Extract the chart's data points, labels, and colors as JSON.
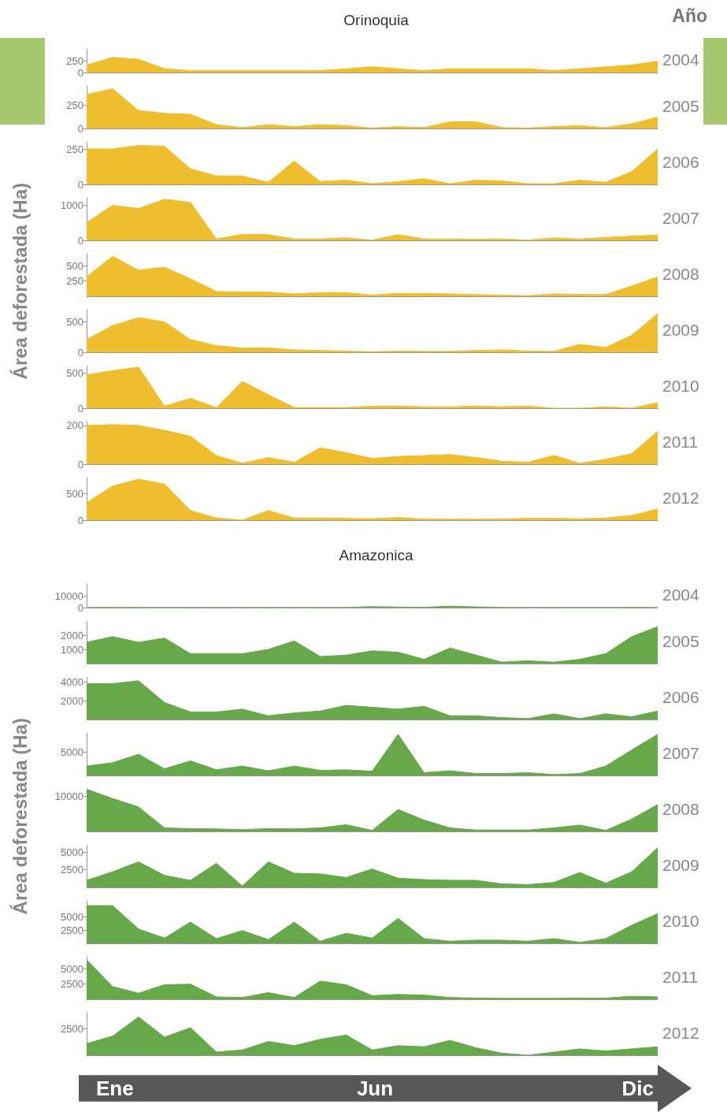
{
  "chart_data": [
    {
      "type": "area",
      "title": "Orinoquia",
      "ylabel": "Área deforestada (Ha)",
      "y2label": "2004",
      "annotations": [
        "Año"
      ],
      "categories": [
        null,
        null,
        null,
        null,
        null,
        null,
        null,
        null,
        null,
        null,
        null,
        null,
        null,
        null,
        null,
        null,
        null,
        null,
        null,
        null,
        null,
        null,
        null
      ],
      "color": "#efbe2f",
      "ylim": [
        0,
        500
      ],
      "yticks": [
        0,
        250
      ],
      "values": [
        160,
        320,
        280,
        80,
        40,
        40,
        40,
        40,
        40,
        40,
        80,
        120,
        80,
        40,
        80,
        80,
        80,
        80,
        40,
        80,
        120,
        160,
        240
      ]
    },
    {
      "type": "area",
      "y2label": "2005",
      "categories": [
        null,
        null,
        null,
        null,
        null,
        null,
        null,
        null,
        null,
        null,
        null,
        null,
        null,
        null,
        null,
        null,
        null,
        null,
        null,
        null,
        null,
        null,
        null
      ],
      "color": "#efbe2f",
      "ylim": [
        0,
        450
      ],
      "yticks": [
        0,
        250
      ],
      "values": [
        360,
        420,
        190,
        160,
        150,
        40,
        10,
        40,
        20,
        40,
        30,
        5,
        20,
        10,
        70,
        70,
        10,
        5,
        20,
        30,
        10,
        50,
        120
      ]
    },
    {
      "type": "area",
      "y2label": "2006",
      "categories": [
        null,
        null,
        null,
        null,
        null,
        null,
        null,
        null,
        null,
        null,
        null,
        null,
        null,
        null,
        null,
        null,
        null,
        null,
        null,
        null,
        null,
        null,
        null
      ],
      "color": "#efbe2f",
      "ylim": [
        0,
        300
      ],
      "yticks": [
        0,
        250
      ],
      "values": [
        250,
        250,
        275,
        270,
        110,
        60,
        60,
        15,
        165,
        20,
        30,
        5,
        20,
        40,
        5,
        30,
        25,
        5,
        5,
        30,
        15,
        90,
        250
      ]
    },
    {
      "type": "area",
      "y2label": "2007",
      "categories": [
        null,
        null,
        null,
        null,
        null,
        null,
        null,
        null,
        null,
        null,
        null,
        null,
        null,
        null,
        null,
        null,
        null,
        null,
        null,
        null,
        null,
        null,
        null
      ],
      "color": "#efbe2f",
      "ylim": [
        0,
        1200
      ],
      "yticks": [
        0,
        1000
      ],
      "values": [
        500,
        990,
        900,
        1160,
        1070,
        40,
        170,
        160,
        40,
        40,
        70,
        10,
        160,
        40,
        40,
        30,
        40,
        10,
        70,
        40,
        80,
        120,
        150
      ]
    },
    {
      "type": "area",
      "y2label": "2008",
      "categories": [
        null,
        null,
        null,
        null,
        null,
        null,
        null,
        null,
        null,
        null,
        null,
        null,
        null,
        null,
        null,
        null,
        null,
        null,
        null,
        null,
        null,
        null,
        null
      ],
      "color": "#efbe2f",
      "ylim": [
        0,
        700
      ],
      "yticks": [
        250,
        500
      ],
      "values": [
        320,
        660,
        430,
        480,
        290,
        80,
        70,
        70,
        40,
        60,
        60,
        20,
        50,
        50,
        40,
        30,
        20,
        10,
        40,
        30,
        30,
        170,
        320
      ]
    },
    {
      "type": "area",
      "y2label": "2009",
      "categories": [
        null,
        null,
        null,
        null,
        null,
        null,
        null,
        null,
        null,
        null,
        null,
        null,
        null,
        null,
        null,
        null,
        null,
        null,
        null,
        null,
        null,
        null,
        null
      ],
      "color": "#efbe2f",
      "ylim": [
        0,
        700
      ],
      "yticks": [
        0,
        500
      ],
      "values": [
        210,
        440,
        570,
        500,
        210,
        110,
        70,
        70,
        40,
        30,
        20,
        10,
        20,
        15,
        15,
        30,
        40,
        20,
        15,
        130,
        80,
        280,
        640
      ]
    },
    {
      "type": "area",
      "y2label": "2010",
      "categories": [
        null,
        null,
        null,
        null,
        null,
        null,
        null,
        null,
        null,
        null,
        null,
        null,
        null,
        null,
        null,
        null,
        null,
        null,
        null,
        null,
        null,
        null,
        null
      ],
      "color": "#efbe2f",
      "ylim": [
        0,
        600
      ],
      "yticks": [
        0,
        500
      ],
      "values": [
        470,
        530,
        580,
        30,
        140,
        10,
        380,
        190,
        10,
        10,
        10,
        30,
        30,
        20,
        20,
        30,
        20,
        30,
        0,
        0,
        20,
        0,
        80
      ]
    },
    {
      "type": "area",
      "y2label": "2011",
      "categories": [
        null,
        null,
        null,
        null,
        null,
        null,
        null,
        null,
        null,
        null,
        null,
        null,
        null,
        null,
        null,
        null,
        null,
        null,
        null,
        null,
        null,
        null,
        null
      ],
      "color": "#efbe2f",
      "ylim": [
        0,
        220
      ],
      "yticks": [
        0,
        200
      ],
      "values": [
        200,
        205,
        200,
        175,
        145,
        45,
        5,
        35,
        10,
        85,
        60,
        30,
        40,
        45,
        50,
        35,
        15,
        10,
        45,
        5,
        25,
        55,
        170
      ]
    },
    {
      "type": "area",
      "y2label": "2012",
      "categories": [
        null,
        null,
        null,
        null,
        null,
        null,
        null,
        null,
        null,
        null,
        null,
        null,
        null,
        null,
        null,
        null,
        null,
        null,
        null,
        null,
        null,
        null,
        null
      ],
      "color": "#efbe2f",
      "ylim": [
        0,
        800
      ],
      "yticks": [
        0,
        500
      ],
      "values": [
        330,
        640,
        770,
        680,
        180,
        40,
        0,
        180,
        40,
        40,
        35,
        25,
        50,
        20,
        20,
        20,
        20,
        35,
        35,
        25,
        40,
        90,
        210
      ]
    },
    {
      "type": "area",
      "title": "Amazonica",
      "ylabel": "Área deforestada (Ha)",
      "y2label": "2004",
      "categories": [
        null,
        null,
        null,
        null,
        null,
        null,
        null,
        null,
        null,
        null,
        null,
        null,
        null,
        null,
        null,
        null,
        null,
        null,
        null,
        null,
        null,
        null,
        null
      ],
      "color": "#66a84a",
      "ylim": [
        0,
        20000
      ],
      "yticks": [
        0,
        10000
      ],
      "values": [
        200,
        200,
        200,
        200,
        200,
        200,
        200,
        200,
        200,
        200,
        200,
        800,
        500,
        300,
        1200,
        600,
        200,
        200,
        200,
        200,
        200,
        200,
        200
      ]
    },
    {
      "type": "area",
      "y2label": "2005",
      "categories": [
        null,
        null,
        null,
        null,
        null,
        null,
        null,
        null,
        null,
        null,
        null,
        null,
        null,
        null,
        null,
        null,
        null,
        null,
        null,
        null,
        null,
        null,
        null
      ],
      "color": "#66a84a",
      "ylim": [
        0,
        3000
      ],
      "yticks": [
        1000,
        2000
      ],
      "values": [
        1500,
        1900,
        1500,
        1800,
        700,
        700,
        700,
        1000,
        1600,
        500,
        600,
        900,
        800,
        300,
        1100,
        600,
        100,
        200,
        100,
        300,
        700,
        1900,
        2600
      ]
    },
    {
      "type": "area",
      "y2label": "2006",
      "categories": [
        null,
        null,
        null,
        null,
        null,
        null,
        null,
        null,
        null,
        null,
        null,
        null,
        null,
        null,
        null,
        null,
        null,
        null,
        null,
        null,
        null,
        null,
        null
      ],
      "color": "#66a84a",
      "ylim": [
        0,
        4500
      ],
      "yticks": [
        2000,
        4000
      ],
      "values": [
        3800,
        3800,
        4100,
        1800,
        800,
        800,
        1100,
        400,
        700,
        900,
        1500,
        1300,
        1100,
        1400,
        400,
        400,
        200,
        100,
        600,
        100,
        600,
        300,
        900
      ]
    },
    {
      "type": "area",
      "y2label": "2007",
      "categories": [
        null,
        null,
        null,
        null,
        null,
        null,
        null,
        null,
        null,
        null,
        null,
        null,
        null,
        null,
        null,
        null,
        null,
        null,
        null,
        null,
        null,
        null,
        null
      ],
      "color": "#66a84a",
      "ylim": [
        0,
        9000
      ],
      "yticks": [
        5000
      ],
      "values": [
        2000,
        2700,
        4500,
        1400,
        3100,
        1200,
        2000,
        1000,
        2000,
        1100,
        1200,
        900,
        8700,
        600,
        1000,
        400,
        400,
        600,
        200,
        400,
        2000,
        5400,
        8700
      ]
    },
    {
      "type": "area",
      "y2label": "2008",
      "categories": [
        null,
        null,
        null,
        null,
        null,
        null,
        null,
        null,
        null,
        null,
        null,
        null,
        null,
        null,
        null,
        null,
        null,
        null,
        null,
        null,
        null,
        null,
        null
      ],
      "color": "#66a84a",
      "ylim": [
        0,
        12000
      ],
      "yticks": [
        10000
      ],
      "values": [
        11900,
        9300,
        6900,
        1000,
        800,
        700,
        500,
        800,
        700,
        1000,
        1900,
        300,
        6200,
        3200,
        1000,
        400,
        400,
        400,
        1000,
        1800,
        300,
        3500,
        7600
      ]
    },
    {
      "type": "area",
      "y2label": "2009",
      "categories": [
        null,
        null,
        null,
        null,
        null,
        null,
        null,
        null,
        null,
        null,
        null,
        null,
        null,
        null,
        null,
        null,
        null,
        null,
        null,
        null,
        null,
        null,
        null
      ],
      "color": "#66a84a",
      "ylim": [
        0,
        6000
      ],
      "yticks": [
        2500,
        5000
      ],
      "values": [
        1000,
        2200,
        3600,
        1700,
        1000,
        3400,
        200,
        3600,
        2000,
        1900,
        1400,
        2600,
        1300,
        1100,
        1000,
        1000,
        500,
        400,
        700,
        2100,
        600,
        2200,
        5600
      ]
    },
    {
      "type": "area",
      "y2label": "2010",
      "categories": [
        null,
        null,
        null,
        null,
        null,
        null,
        null,
        null,
        null,
        null,
        null,
        null,
        null,
        null,
        null,
        null,
        null,
        null,
        null,
        null,
        null,
        null,
        null
      ],
      "color": "#66a84a",
      "ylim": [
        0,
        8000
      ],
      "yticks": [
        2500,
        5000
      ],
      "values": [
        7100,
        7100,
        2700,
        1000,
        4000,
        900,
        2400,
        700,
        4000,
        400,
        1900,
        1000,
        4700,
        900,
        400,
        600,
        600,
        400,
        900,
        200,
        900,
        3400,
        5600
      ]
    },
    {
      "type": "area",
      "y2label": "2011",
      "categories": [
        null,
        null,
        null,
        null,
        null,
        null,
        null,
        null,
        null,
        null,
        null,
        null,
        null,
        null,
        null,
        null,
        null,
        null,
        null,
        null,
        null,
        null,
        null
      ],
      "color": "#66a84a",
      "ylim": [
        0,
        7000
      ],
      "yticks": [
        2500,
        5000
      ],
      "values": [
        6500,
        2100,
        1000,
        2400,
        2500,
        400,
        300,
        1100,
        300,
        3000,
        2400,
        600,
        800,
        700,
        300,
        200,
        150,
        150,
        150,
        200,
        200,
        500,
        400
      ]
    },
    {
      "type": "area",
      "y2label": "2012",
      "annotations": [
        "Ene",
        "Jun",
        "Dic"
      ],
      "categories": [
        null,
        null,
        null,
        null,
        null,
        null,
        null,
        null,
        null,
        null,
        null,
        null,
        null,
        null,
        null,
        null,
        null,
        null,
        null,
        null,
        null,
        null,
        null
      ],
      "color": "#66a84a",
      "ylim": [
        0,
        4000
      ],
      "yticks": [
        2500
      ],
      "values": [
        1100,
        1800,
        3600,
        1700,
        2600,
        300,
        500,
        1300,
        900,
        1500,
        1900,
        500,
        900,
        800,
        1400,
        700,
        200,
        0,
        300,
        600,
        400,
        600,
        800
      ]
    }
  ]
}
